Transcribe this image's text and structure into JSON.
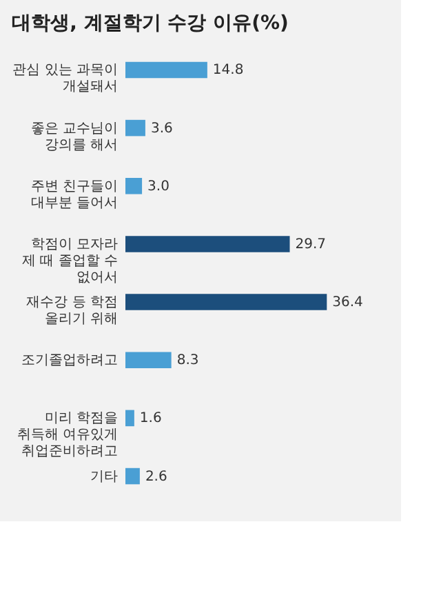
{
  "chart_data": {
    "type": "bar",
    "orientation": "horizontal",
    "title": "대학생, 계절학기 수강 이유(%)",
    "categories": [
      "관심 있는 과목이\n개설돼서",
      "좋은 교수님이\n강의를 해서",
      "주변 친구들이\n대부분 들어서",
      "학점이 모자라\n제 때 졸업할 수\n없어서",
      "재수강 등 학점\n올리기 위해",
      "조기졸업하려고",
      "미리 학점을\n취득해 여유있게\n취업준비하려고",
      "기타"
    ],
    "values": [
      14.8,
      3.6,
      3.0,
      29.7,
      36.4,
      8.3,
      1.6,
      2.6
    ],
    "colors": [
      "#4a9fd4",
      "#4a9fd4",
      "#4a9fd4",
      "#1c4e7c",
      "#1c4e7c",
      "#4a9fd4",
      "#4a9fd4",
      "#4a9fd4"
    ],
    "value_labels": [
      "14.8",
      "3.6",
      "3.0",
      "29.7",
      "36.4",
      "8.3",
      "1.6",
      "2.6"
    ],
    "grid": false
  }
}
